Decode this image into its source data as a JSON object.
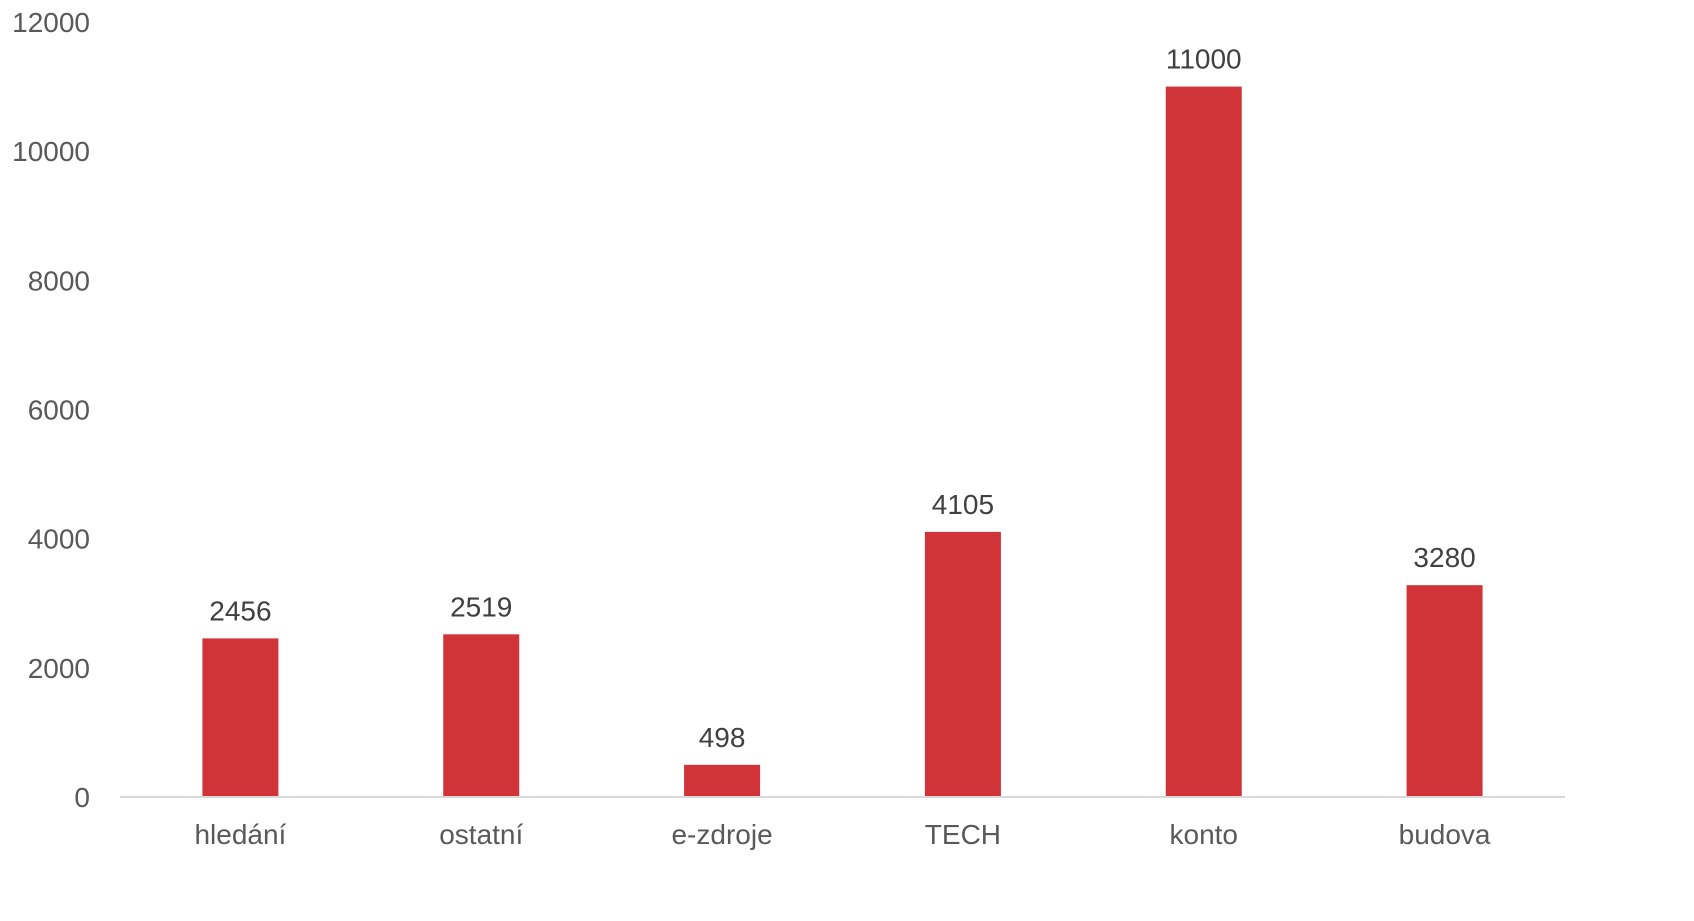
{
  "chart_data": {
    "type": "bar",
    "categories": [
      "hledání",
      "ostatní",
      "e-zdroje",
      "TECH",
      "konto",
      "budova"
    ],
    "values": [
      2456,
      2519,
      498,
      4105,
      11000,
      3280
    ],
    "data_labels": [
      "2456",
      "2519",
      "498",
      "4105",
      "11000",
      "3280"
    ],
    "yticks": [
      "0",
      "2000",
      "4000",
      "6000",
      "8000",
      "10000",
      "12000"
    ],
    "ylim": [
      0,
      12000
    ],
    "grid": false,
    "legend": "none",
    "bar_color": "#d13438",
    "axis_color": "#d9d9d9"
  }
}
